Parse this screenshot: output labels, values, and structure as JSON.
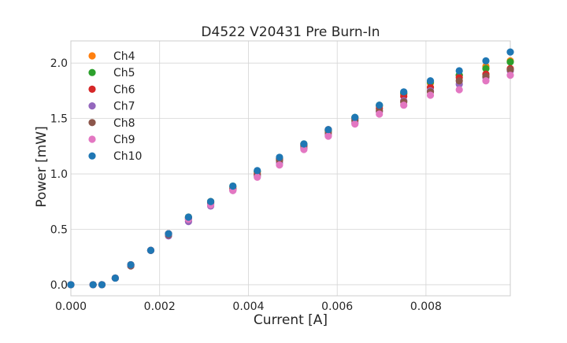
{
  "chart_data": {
    "type": "scatter",
    "title": "D4522 V20431 Pre Burn-In",
    "xlabel": "Current [A]",
    "ylabel": "Power [mW]",
    "xlim": [
      0,
      0.0099
    ],
    "ylim": [
      -0.1,
      2.2
    ],
    "x_ticks": [
      "0.000",
      "0.002",
      "0.004",
      "0.006",
      "0.008"
    ],
    "x_tick_values": [
      0,
      0.002,
      0.004,
      0.006,
      0.008
    ],
    "y_ticks": [
      "0.0",
      "0.5",
      "1.0",
      "1.5",
      "2.0"
    ],
    "y_tick_values": [
      0,
      0.5,
      1.0,
      1.5,
      2.0
    ],
    "grid": true,
    "legend_position": "top-left",
    "x": [
      0,
      0.0005,
      0.0007,
      0.001,
      0.00135,
      0.0018,
      0.0022,
      0.00265,
      0.00315,
      0.00365,
      0.0042,
      0.0047,
      0.00525,
      0.0058,
      0.0064,
      0.00695,
      0.0075,
      0.0081,
      0.00875,
      0.00935,
      0.0099
    ],
    "series": [
      {
        "name": "Ch4",
        "color": "#ff7f0e",
        "values": [
          0,
          0,
          0,
          0.06,
          0.18,
          0.31,
          0.46,
          0.61,
          0.75,
          0.88,
          1.02,
          1.14,
          1.26,
          1.39,
          1.5,
          1.61,
          1.72,
          1.82,
          1.89,
          1.97,
          2.02
        ]
      },
      {
        "name": "Ch5",
        "color": "#2ca02c",
        "values": [
          0,
          0,
          0,
          0.06,
          0.18,
          0.31,
          0.46,
          0.61,
          0.75,
          0.89,
          1.02,
          1.14,
          1.27,
          1.39,
          1.51,
          1.62,
          1.73,
          1.83,
          1.89,
          1.95,
          2.01
        ]
      },
      {
        "name": "Ch6",
        "color": "#d62728",
        "values": [
          0,
          0,
          0,
          0.06,
          0.18,
          0.31,
          0.46,
          0.6,
          0.74,
          0.87,
          1.0,
          1.13,
          1.26,
          1.4,
          1.49,
          1.59,
          1.7,
          1.78,
          1.87,
          1.9,
          1.95
        ]
      },
      {
        "name": "Ch7",
        "color": "#9467bd",
        "values": [
          0,
          0,
          0,
          0.06,
          0.17,
          0.31,
          0.44,
          0.57,
          0.71,
          0.85,
          0.98,
          1.1,
          1.23,
          1.35,
          1.46,
          1.56,
          1.66,
          1.75,
          1.81,
          1.87,
          1.93
        ]
      },
      {
        "name": "Ch8",
        "color": "#8c564b",
        "values": [
          0,
          0,
          0,
          0.06,
          0.17,
          0.31,
          0.45,
          0.59,
          0.73,
          0.86,
          0.99,
          1.12,
          1.25,
          1.37,
          1.48,
          1.57,
          1.65,
          1.74,
          1.84,
          1.88,
          1.94
        ]
      },
      {
        "name": "Ch9",
        "color": "#e377c2",
        "values": [
          0,
          0,
          0,
          0.06,
          0.18,
          0.31,
          0.46,
          0.59,
          0.72,
          0.85,
          0.97,
          1.08,
          1.22,
          1.34,
          1.45,
          1.54,
          1.62,
          1.71,
          1.76,
          1.84,
          1.89
        ]
      },
      {
        "name": "Ch10",
        "color": "#1f77b4",
        "values": [
          0,
          0,
          0,
          0.06,
          0.18,
          0.31,
          0.46,
          0.61,
          0.75,
          0.89,
          1.03,
          1.15,
          1.27,
          1.4,
          1.51,
          1.62,
          1.74,
          1.84,
          1.93,
          2.02,
          2.1
        ]
      }
    ]
  }
}
